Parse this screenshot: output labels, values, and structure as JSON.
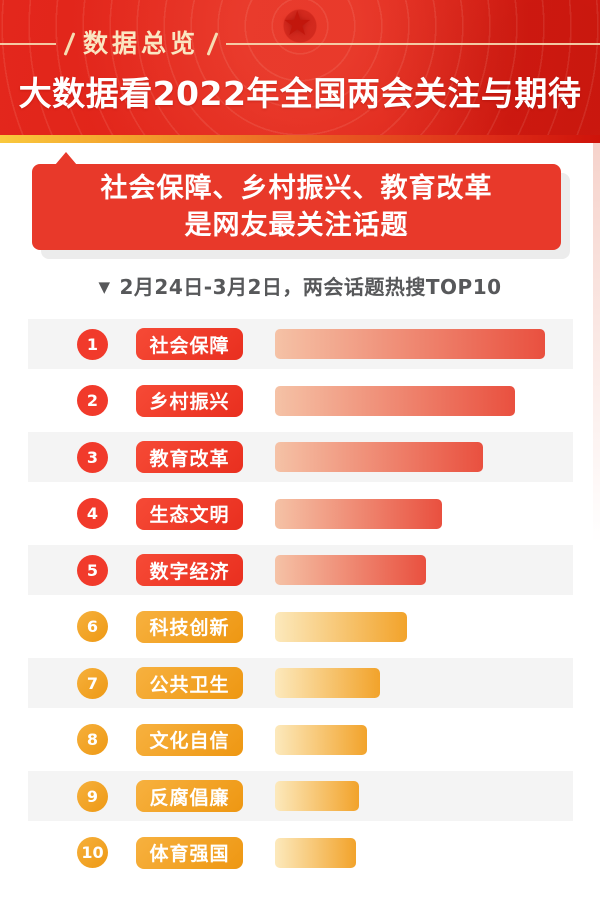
{
  "header": {
    "tag": "数据总览",
    "title": "大数据看2022年全国两会关注与期待",
    "bg_color": "#E0241A",
    "tag_color": "#FAE6C2",
    "stripe_gradient": [
      "#F9C93D",
      "#F3A02C",
      "#EA5F23",
      "#CE130A"
    ]
  },
  "banner": {
    "line1": "社会保障、乡村振兴、教育改革",
    "line2": "是网友最关注话题",
    "bg_color": "#E8392A",
    "shadow_color": "#ECECEC"
  },
  "subtitle": {
    "marker": "▼",
    "text": "2月24日-3月2日，两会话题热搜TOP10"
  },
  "chart_data": {
    "type": "bar",
    "orientation": "horizontal",
    "title": "两会话题热搜TOP10",
    "period": "2月24日-3月2日",
    "ranks": [
      1,
      2,
      3,
      4,
      5,
      6,
      7,
      8,
      9,
      10
    ],
    "categories": [
      "社会保障",
      "乡村振兴",
      "教育改革",
      "生态文明",
      "数字经济",
      "科技创新",
      "公共卫生",
      "文化自信",
      "反腐倡廉",
      "体育强国"
    ],
    "values": [
      100,
      89,
      77,
      62,
      56,
      49,
      39,
      34,
      31,
      30
    ],
    "value_unit": "relative search heat, % of max (estimated from bar lengths; no numeric labels shown)",
    "legend": "none",
    "grid": "off",
    "theme": {
      "ranks_1_to_5": "red",
      "ranks_6_to_10": "gold",
      "red_bar_gradient": [
        "#F5C2A6",
        "#E9503F"
      ],
      "gold_bar_gradient": [
        "#FCE9BC",
        "#F2A32B"
      ],
      "red_badge": "#F13A2B",
      "gold_badge": "#F0A024",
      "stripe_row_bg": "#F4F4F4"
    }
  }
}
